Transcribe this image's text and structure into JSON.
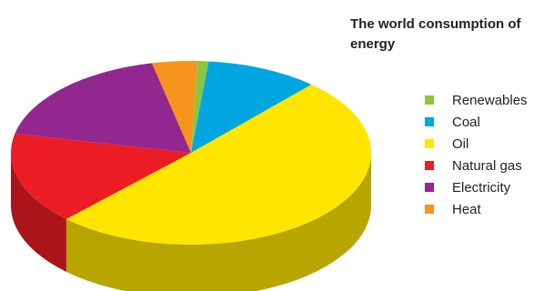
{
  "chart_data": {
    "type": "pie",
    "title": "The world consumption of energy",
    "legend_position": "right",
    "three_d": true,
    "slices": [
      {
        "name": "Renewables",
        "value": 1,
        "color": "#8cc63f"
      },
      {
        "name": "Coal",
        "value": 10,
        "color": "#00a6e0"
      },
      {
        "name": "Oil",
        "value": 50,
        "color": "#ffe500"
      },
      {
        "name": "Natural gas",
        "value": 16,
        "color": "#ec1c24"
      },
      {
        "name": "Electricity",
        "value": 18,
        "color": "#92278f"
      },
      {
        "name": "Heat",
        "value": 4,
        "color": "#f7941d"
      }
    ]
  }
}
